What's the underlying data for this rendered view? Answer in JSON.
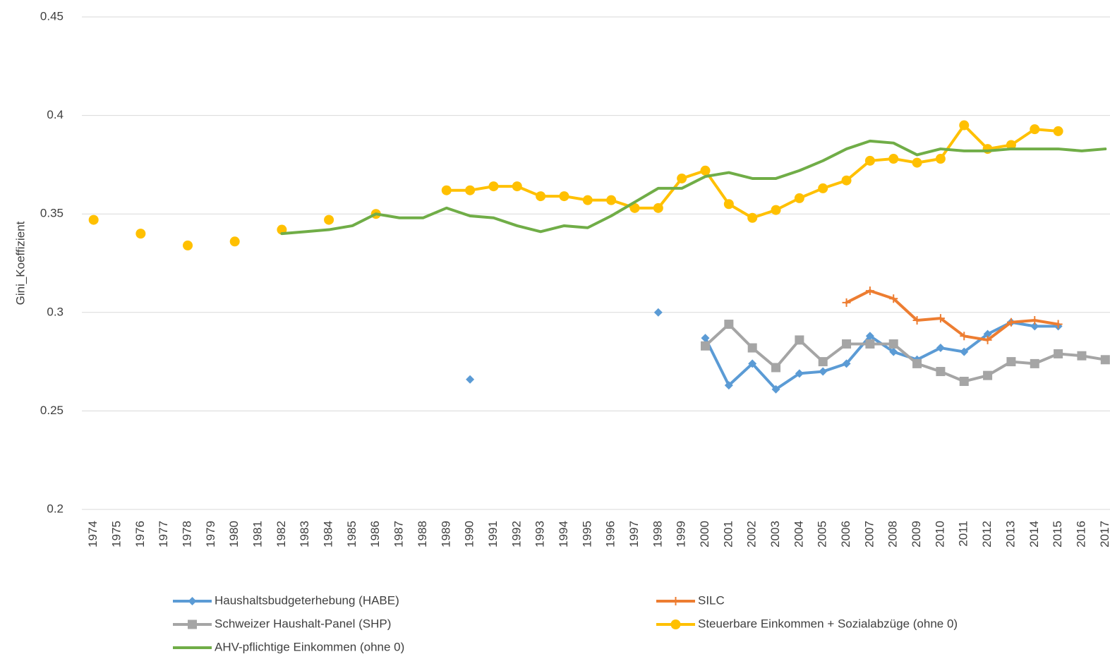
{
  "chart_data": {
    "type": "line",
    "y_label": "Gini_Koeffizient",
    "categories": [
      "1974",
      "1975",
      "1976",
      "1977",
      "1978",
      "1979",
      "1980",
      "1981",
      "1982",
      "1983",
      "1984",
      "1985",
      "1986",
      "1987",
      "1988",
      "1989",
      "1990",
      "1991",
      "1992",
      "1993",
      "1994",
      "1995",
      "1996",
      "1997",
      "1998",
      "1999",
      "2000",
      "2001",
      "2002",
      "2003",
      "2004",
      "2005",
      "2006",
      "2007",
      "2008",
      "2009",
      "2010",
      "2011",
      "2012",
      "2013",
      "2014",
      "2015",
      "2016",
      "2017"
    ],
    "ylim": [
      0.2,
      0.45
    ],
    "yticks": [
      0.2,
      0.25,
      0.3,
      0.35,
      0.4,
      0.45
    ],
    "grid": true,
    "series": [
      {
        "name": "Haushaltsbudgeterhebung (HABE)",
        "color": "#5b9bd5",
        "marker": "diamond",
        "values": [
          null,
          null,
          null,
          null,
          null,
          null,
          null,
          null,
          null,
          null,
          null,
          null,
          null,
          null,
          null,
          null,
          0.266,
          null,
          null,
          null,
          null,
          null,
          null,
          null,
          0.3,
          null,
          0.287,
          0.263,
          0.274,
          0.261,
          0.269,
          0.27,
          0.274,
          0.288,
          0.28,
          0.276,
          0.282,
          0.28,
          0.289,
          0.295,
          0.293,
          0.293,
          null,
          null
        ]
      },
      {
        "name": "SILC",
        "color": "#ed7d31",
        "marker": "plus",
        "values": [
          null,
          null,
          null,
          null,
          null,
          null,
          null,
          null,
          null,
          null,
          null,
          null,
          null,
          null,
          null,
          null,
          null,
          null,
          null,
          null,
          null,
          null,
          null,
          null,
          null,
          null,
          null,
          null,
          null,
          null,
          null,
          null,
          0.305,
          0.311,
          0.307,
          0.296,
          0.297,
          0.288,
          0.286,
          0.295,
          0.296,
          0.294,
          null,
          null
        ]
      },
      {
        "name": "Schweizer Haushalt-Panel (SHP)",
        "color": "#a5a5a5",
        "marker": "square",
        "values": [
          null,
          null,
          null,
          null,
          null,
          null,
          null,
          null,
          null,
          null,
          null,
          null,
          null,
          null,
          null,
          null,
          null,
          null,
          null,
          null,
          null,
          null,
          null,
          null,
          null,
          null,
          0.283,
          0.294,
          0.282,
          0.272,
          0.286,
          0.275,
          0.284,
          0.284,
          0.284,
          0.274,
          0.27,
          0.265,
          0.268,
          0.275,
          0.274,
          0.279,
          0.278,
          0.276
        ]
      },
      {
        "name": "Steuerbare Einkommen + Sozialabzüge (ohne 0)",
        "color": "#ffc000",
        "marker": "circle",
        "values": [
          0.347,
          null,
          0.34,
          null,
          0.334,
          null,
          0.336,
          null,
          0.342,
          null,
          0.347,
          null,
          0.35,
          null,
          null,
          0.362,
          0.362,
          0.364,
          0.364,
          0.359,
          0.359,
          0.357,
          0.357,
          0.353,
          0.353,
          0.368,
          0.372,
          0.355,
          0.348,
          0.352,
          0.358,
          0.363,
          0.367,
          0.377,
          0.378,
          0.376,
          0.378,
          0.395,
          0.383,
          0.385,
          0.393,
          0.392,
          null,
          null
        ]
      },
      {
        "name": "AHV-pflichtige Einkommen (ohne 0)",
        "color": "#70ad47",
        "marker": "none",
        "values": [
          null,
          null,
          null,
          null,
          null,
          null,
          null,
          null,
          0.34,
          0.341,
          0.342,
          0.344,
          0.35,
          0.348,
          0.348,
          0.353,
          0.349,
          0.348,
          0.344,
          0.341,
          0.344,
          0.343,
          0.349,
          0.356,
          0.363,
          0.363,
          0.369,
          0.371,
          0.368,
          0.368,
          0.372,
          0.377,
          0.383,
          0.387,
          0.386,
          0.38,
          0.383,
          0.382,
          0.382,
          0.383,
          0.383,
          0.383,
          0.382,
          0.383
        ]
      }
    ]
  }
}
